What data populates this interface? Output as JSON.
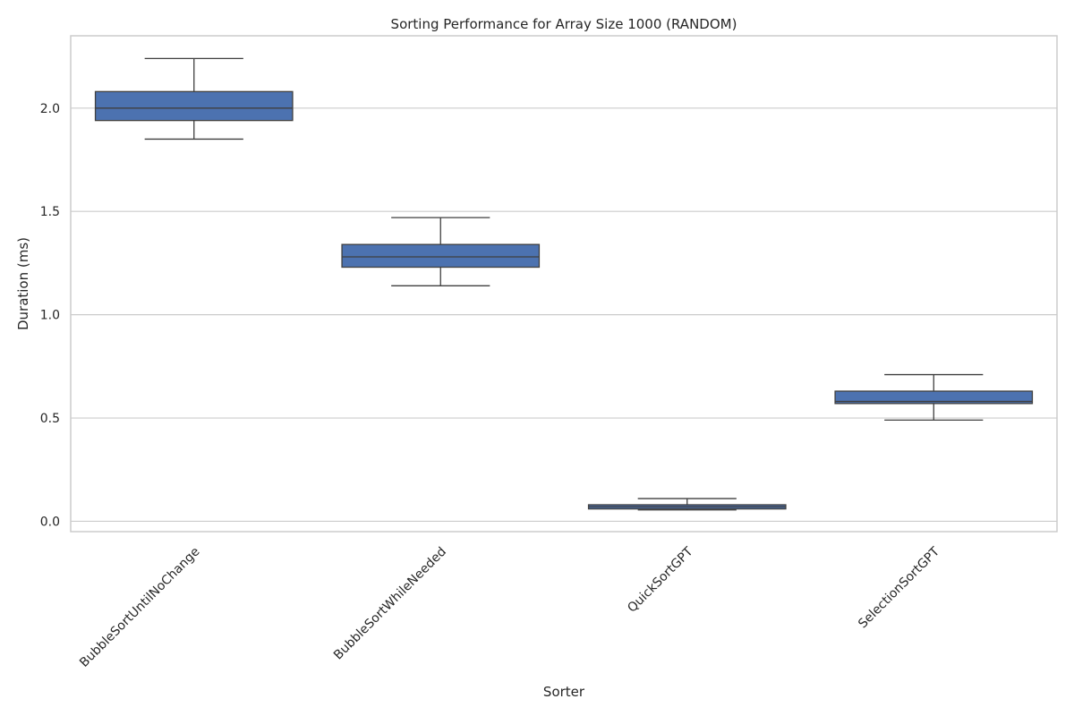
{
  "chart_data": {
    "type": "box",
    "title": "Sorting Performance for Array Size 1000 (RANDOM)",
    "xlabel": "Sorter",
    "ylabel": "Duration (ms)",
    "ylim": [
      -0.05,
      2.35
    ],
    "yticks": [
      0.0,
      0.5,
      1.0,
      1.5,
      2.0
    ],
    "ytick_labels": [
      "0.0",
      "0.5",
      "1.0",
      "1.5",
      "2.0"
    ],
    "grid": true,
    "box_color": "#4c72b0",
    "categories": [
      "BubbleSortUntilNoChange",
      "BubbleSortWhileNeeded",
      "QuickSortGPT",
      "SelectionSortGPT"
    ],
    "boxes": [
      {
        "whisker_low": 1.85,
        "q1": 1.94,
        "median": 2.0,
        "q3": 2.08,
        "whisker_high": 2.24
      },
      {
        "whisker_low": 1.14,
        "q1": 1.23,
        "median": 1.28,
        "q3": 1.34,
        "whisker_high": 1.47
      },
      {
        "whisker_low": 0.055,
        "q1": 0.06,
        "median": 0.07,
        "q3": 0.08,
        "whisker_high": 0.11
      },
      {
        "whisker_low": 0.49,
        "q1": 0.57,
        "median": 0.58,
        "q3": 0.63,
        "whisker_high": 0.71
      }
    ]
  }
}
